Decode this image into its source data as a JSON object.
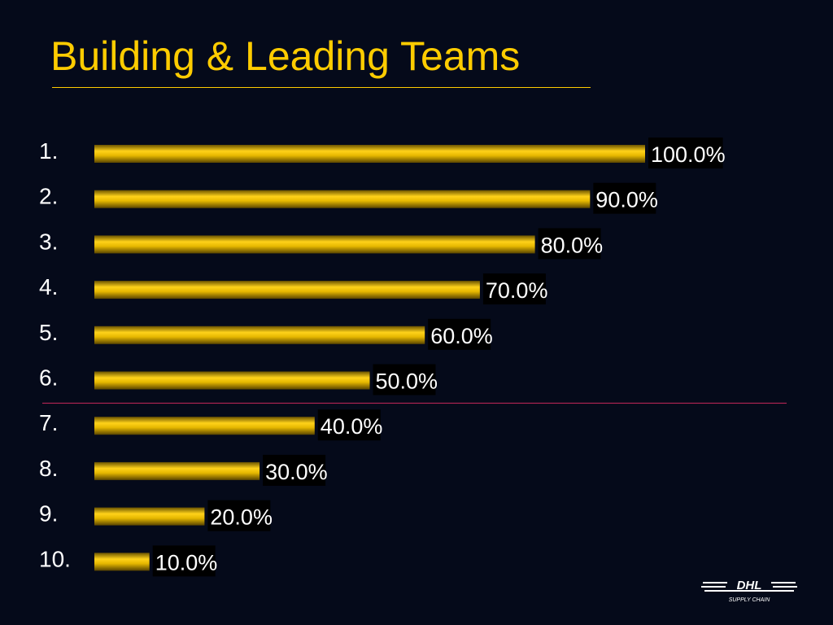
{
  "slide": {
    "title": "Building & Leading Teams",
    "title_color": "#ffcc00",
    "background": "#050a1a",
    "divider_color": "#c8285a"
  },
  "chart_data": {
    "type": "bar",
    "orientation": "horizontal",
    "categories": [
      "1.",
      "2.",
      "3.",
      "4.",
      "5.",
      "6.",
      "7.",
      "8.",
      "9.",
      "10."
    ],
    "values": [
      100.0,
      90.0,
      80.0,
      70.0,
      60.0,
      50.0,
      40.0,
      30.0,
      20.0,
      10.0
    ],
    "value_labels": [
      "100.0%",
      "90.0%",
      "80.0%",
      "70.0%",
      "60.0%",
      "50.0%",
      "40.0%",
      "30.0%",
      "20.0%",
      "10.0%"
    ],
    "xlim": [
      0,
      100
    ],
    "unit": "%",
    "bar_color": "#e6b800",
    "grid": false,
    "legend": "none",
    "divider_after_category": "6."
  },
  "logo": {
    "brand": "DHL",
    "tagline": "SUPPLY CHAIN",
    "icon": "dhl-supply-chain-logo-icon"
  }
}
